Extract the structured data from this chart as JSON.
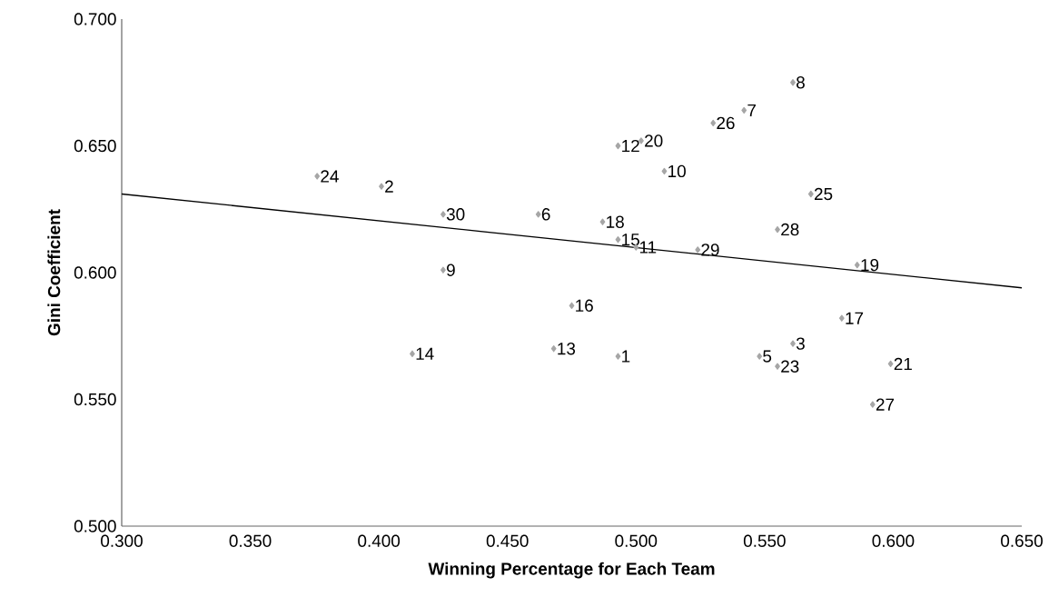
{
  "chart_data": {
    "type": "scatter",
    "xlabel": "Winning Percentage for Each Team",
    "ylabel": "Gini Coefficient",
    "xlim": [
      0.3,
      0.65
    ],
    "ylim": [
      0.5,
      0.7
    ],
    "xticks": [
      {
        "value": 0.3,
        "label": "0.300"
      },
      {
        "value": 0.35,
        "label": "0.350"
      },
      {
        "value": 0.4,
        "label": "0.400"
      },
      {
        "value": 0.45,
        "label": "0.450"
      },
      {
        "value": 0.5,
        "label": "0.500"
      },
      {
        "value": 0.55,
        "label": "0.550"
      },
      {
        "value": 0.6,
        "label": "0.600"
      },
      {
        "value": 0.65,
        "label": "0.650"
      }
    ],
    "yticks": [
      {
        "value": 0.5,
        "label": "0.500"
      },
      {
        "value": 0.55,
        "label": "0.550"
      },
      {
        "value": 0.6,
        "label": "0.600"
      },
      {
        "value": 0.65,
        "label": "0.650"
      },
      {
        "value": 0.7,
        "label": "0.700"
      }
    ],
    "grid": false,
    "legend": false,
    "marker": "diamond",
    "series": [
      {
        "color": "#a6a6a6",
        "x": [
          0.376,
          0.401,
          0.425,
          0.462,
          0.425,
          0.561,
          0.542,
          0.53,
          0.493,
          0.502,
          0.511,
          0.568,
          0.487,
          0.493,
          0.5,
          0.524,
          0.555,
          0.586,
          0.475,
          0.58,
          0.413,
          0.468,
          0.493,
          0.548,
          0.561,
          0.555,
          0.599,
          0.592
        ],
        "values": [
          0.638,
          0.634,
          0.623,
          0.623,
          0.601,
          0.675,
          0.664,
          0.659,
          0.65,
          0.652,
          0.64,
          0.631,
          0.62,
          0.613,
          0.61,
          0.609,
          0.617,
          0.603,
          0.587,
          0.582,
          0.568,
          0.57,
          0.567,
          0.567,
          0.572,
          0.563,
          0.564,
          0.548
        ]
      },
      {
        "type": "line",
        "color": "#000000",
        "marker": "none",
        "line_style": "solid",
        "x": [
          0.3,
          0.65
        ],
        "values": [
          0.631,
          0.594
        ]
      }
    ],
    "annotations": [
      {
        "text": "24",
        "x": 0.376,
        "y": 0.638
      },
      {
        "text": "2",
        "x": 0.401,
        "y": 0.634
      },
      {
        "text": "30",
        "x": 0.425,
        "y": 0.623
      },
      {
        "text": "6",
        "x": 0.462,
        "y": 0.623
      },
      {
        "text": "9",
        "x": 0.425,
        "y": 0.601
      },
      {
        "text": "8",
        "x": 0.561,
        "y": 0.675
      },
      {
        "text": "7",
        "x": 0.542,
        "y": 0.664
      },
      {
        "text": "26",
        "x": 0.53,
        "y": 0.659
      },
      {
        "text": "12",
        "x": 0.493,
        "y": 0.65
      },
      {
        "text": "20",
        "x": 0.502,
        "y": 0.652
      },
      {
        "text": "10",
        "x": 0.511,
        "y": 0.64
      },
      {
        "text": "25",
        "x": 0.568,
        "y": 0.631
      },
      {
        "text": "18",
        "x": 0.487,
        "y": 0.62
      },
      {
        "text": "15",
        "x": 0.493,
        "y": 0.613
      },
      {
        "text": "11",
        "x": 0.5,
        "y": 0.61
      },
      {
        "text": "29",
        "x": 0.524,
        "y": 0.609
      },
      {
        "text": "28",
        "x": 0.555,
        "y": 0.617
      },
      {
        "text": "19",
        "x": 0.586,
        "y": 0.603
      },
      {
        "text": "16",
        "x": 0.475,
        "y": 0.587
      },
      {
        "text": "17",
        "x": 0.58,
        "y": 0.582
      },
      {
        "text": "14",
        "x": 0.413,
        "y": 0.568
      },
      {
        "text": "13",
        "x": 0.468,
        "y": 0.57
      },
      {
        "text": "1",
        "x": 0.493,
        "y": 0.567
      },
      {
        "text": "5",
        "x": 0.548,
        "y": 0.567
      },
      {
        "text": "3",
        "x": 0.561,
        "y": 0.572
      },
      {
        "text": "23",
        "x": 0.555,
        "y": 0.563
      },
      {
        "text": "21",
        "x": 0.599,
        "y": 0.564
      },
      {
        "text": "27",
        "x": 0.592,
        "y": 0.548
      }
    ]
  }
}
